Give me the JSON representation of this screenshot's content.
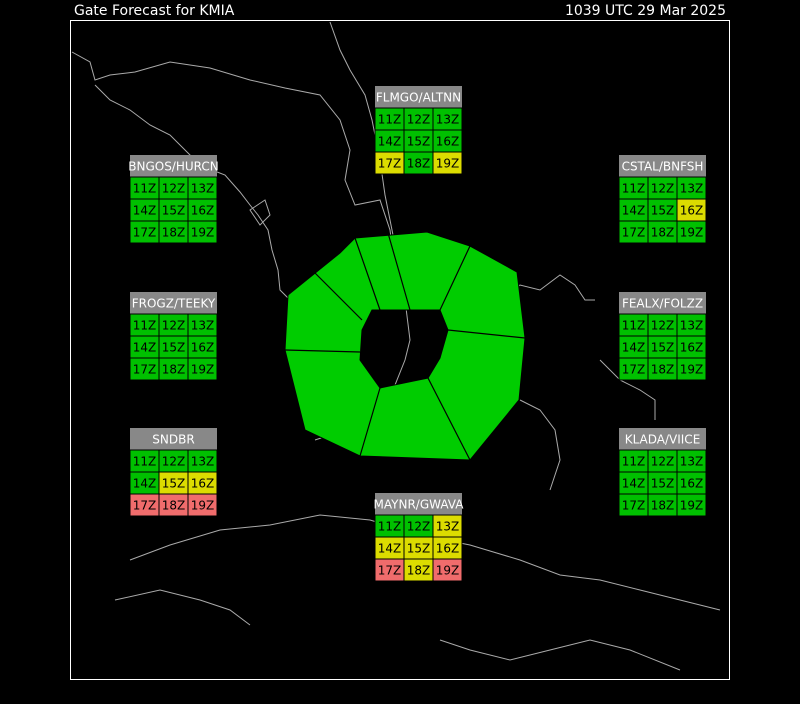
{
  "header": {
    "title": "Gate Forecast for KMIA",
    "timestamp": "1039 UTC 29 Mar 2025"
  },
  "gates": [
    {
      "name": "FLMGO/ALTNN",
      "cells": [
        [
          {
            "label": "11Z",
            "color": "#00c000"
          },
          {
            "label": "12Z",
            "color": "#00c000"
          },
          {
            "label": "13Z",
            "color": "#00c000"
          }
        ],
        [
          {
            "label": "14Z",
            "color": "#00c000"
          },
          {
            "label": "15Z",
            "color": "#00c000"
          },
          {
            "label": "16Z",
            "color": "#00c000"
          }
        ],
        [
          {
            "label": "17Z",
            "color": "#dcdc00"
          },
          {
            "label": "18Z",
            "color": "#00c000"
          },
          {
            "label": "19Z",
            "color": "#dcdc00"
          }
        ]
      ]
    },
    {
      "name": "BNGOS/HURCN",
      "cells": [
        [
          {
            "label": "11Z",
            "color": "#00c000"
          },
          {
            "label": "12Z",
            "color": "#00c000"
          },
          {
            "label": "13Z",
            "color": "#00c000"
          }
        ],
        [
          {
            "label": "14Z",
            "color": "#00c000"
          },
          {
            "label": "15Z",
            "color": "#00c000"
          },
          {
            "label": "16Z",
            "color": "#00c000"
          }
        ],
        [
          {
            "label": "17Z",
            "color": "#00c000"
          },
          {
            "label": "18Z",
            "color": "#00c000"
          },
          {
            "label": "19Z",
            "color": "#00c000"
          }
        ]
      ]
    },
    {
      "name": "CSTAL/BNFSH",
      "cells": [
        [
          {
            "label": "11Z",
            "color": "#00c000"
          },
          {
            "label": "12Z",
            "color": "#00c000"
          },
          {
            "label": "13Z",
            "color": "#00c000"
          }
        ],
        [
          {
            "label": "14Z",
            "color": "#00c000"
          },
          {
            "label": "15Z",
            "color": "#00c000"
          },
          {
            "label": "16Z",
            "color": "#dcdc00"
          }
        ],
        [
          {
            "label": "17Z",
            "color": "#00c000"
          },
          {
            "label": "18Z",
            "color": "#00c000"
          },
          {
            "label": "19Z",
            "color": "#00c000"
          }
        ]
      ]
    },
    {
      "name": "FROGZ/TEEKY",
      "cells": [
        [
          {
            "label": "11Z",
            "color": "#00c000"
          },
          {
            "label": "12Z",
            "color": "#00c000"
          },
          {
            "label": "13Z",
            "color": "#00c000"
          }
        ],
        [
          {
            "label": "14Z",
            "color": "#00c000"
          },
          {
            "label": "15Z",
            "color": "#00c000"
          },
          {
            "label": "16Z",
            "color": "#00c000"
          }
        ],
        [
          {
            "label": "17Z",
            "color": "#00c000"
          },
          {
            "label": "18Z",
            "color": "#00c000"
          },
          {
            "label": "19Z",
            "color": "#00c000"
          }
        ]
      ]
    },
    {
      "name": "FEALX/FOLZZ",
      "cells": [
        [
          {
            "label": "11Z",
            "color": "#00c000"
          },
          {
            "label": "12Z",
            "color": "#00c000"
          },
          {
            "label": "13Z",
            "color": "#00c000"
          }
        ],
        [
          {
            "label": "14Z",
            "color": "#00c000"
          },
          {
            "label": "15Z",
            "color": "#00c000"
          },
          {
            "label": "16Z",
            "color": "#00c000"
          }
        ],
        [
          {
            "label": "17Z",
            "color": "#00c000"
          },
          {
            "label": "18Z",
            "color": "#00c000"
          },
          {
            "label": "19Z",
            "color": "#00c000"
          }
        ]
      ]
    },
    {
      "name": "SNDBR",
      "cells": [
        [
          {
            "label": "11Z",
            "color": "#00c000"
          },
          {
            "label": "12Z",
            "color": "#00c000"
          },
          {
            "label": "13Z",
            "color": "#00c000"
          }
        ],
        [
          {
            "label": "14Z",
            "color": "#00c000"
          },
          {
            "label": "15Z",
            "color": "#dcdc00"
          },
          {
            "label": "16Z",
            "color": "#dcdc00"
          }
        ],
        [
          {
            "label": "17Z",
            "color": "#f06c6c"
          },
          {
            "label": "18Z",
            "color": "#f06c6c"
          },
          {
            "label": "19Z",
            "color": "#f06c6c"
          }
        ]
      ]
    },
    {
      "name": "KLADA/VIICE",
      "cells": [
        [
          {
            "label": "11Z",
            "color": "#00c000"
          },
          {
            "label": "12Z",
            "color": "#00c000"
          },
          {
            "label": "13Z",
            "color": "#00c000"
          }
        ],
        [
          {
            "label": "14Z",
            "color": "#00c000"
          },
          {
            "label": "15Z",
            "color": "#00c000"
          },
          {
            "label": "16Z",
            "color": "#00c000"
          }
        ],
        [
          {
            "label": "17Z",
            "color": "#00c000"
          },
          {
            "label": "18Z",
            "color": "#00c000"
          },
          {
            "label": "19Z",
            "color": "#00c000"
          }
        ]
      ]
    },
    {
      "name": "MAYNR/GWAVA",
      "cells": [
        [
          {
            "label": "11Z",
            "color": "#00c000"
          },
          {
            "label": "12Z",
            "color": "#00c000"
          },
          {
            "label": "13Z",
            "color": "#dcdc00"
          }
        ],
        [
          {
            "label": "14Z",
            "color": "#dcdc00"
          },
          {
            "label": "15Z",
            "color": "#dcdc00"
          },
          {
            "label": "16Z",
            "color": "#dcdc00"
          }
        ],
        [
          {
            "label": "17Z",
            "color": "#f06c6c"
          },
          {
            "label": "18Z",
            "color": "#dcdc00"
          },
          {
            "label": "19Z",
            "color": "#f06c6c"
          }
        ]
      ]
    }
  ]
}
